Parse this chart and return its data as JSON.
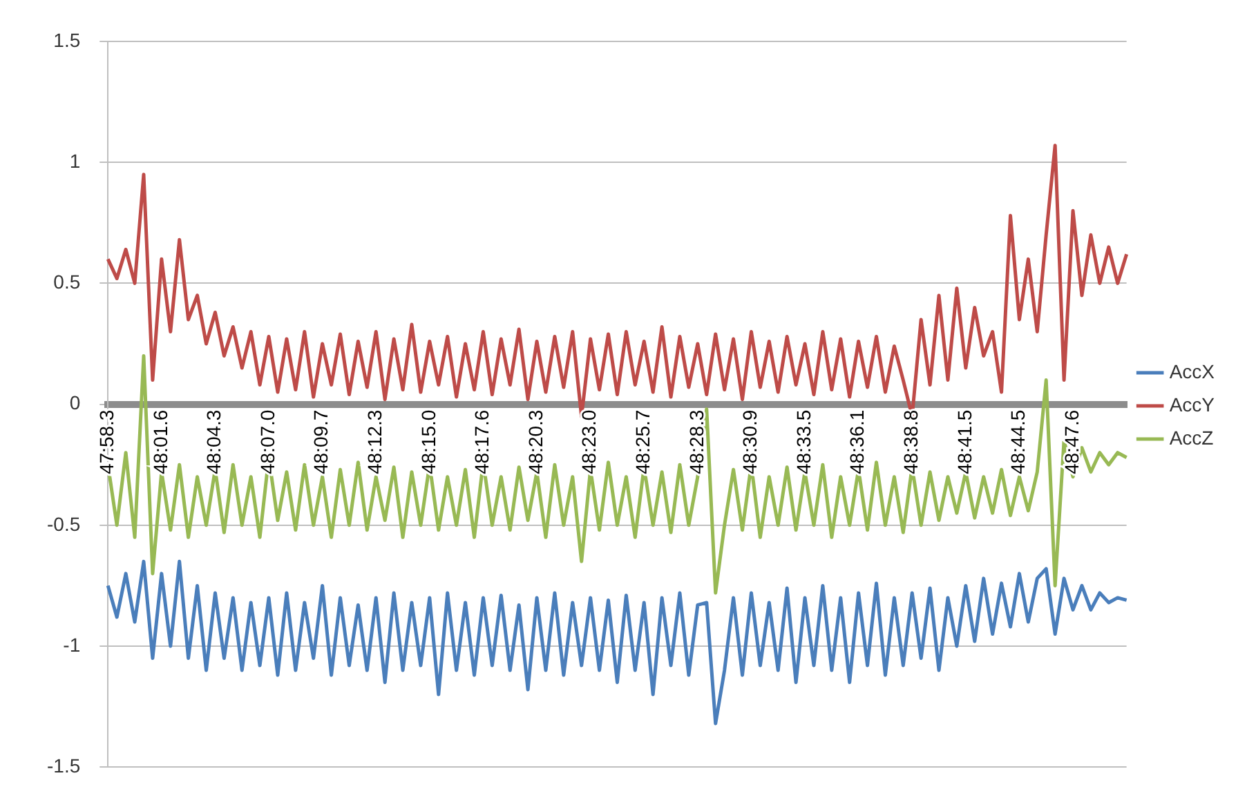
{
  "chart_data": {
    "type": "line",
    "categories": [
      "47:58.3",
      null,
      null,
      null,
      null,
      null,
      "48:01.6",
      null,
      null,
      null,
      null,
      null,
      "48:04.3",
      null,
      null,
      null,
      null,
      null,
      "48:07.0",
      null,
      null,
      null,
      null,
      null,
      "48:09.7",
      null,
      null,
      null,
      null,
      null,
      "48:12.3",
      null,
      null,
      null,
      null,
      null,
      "48:15.0",
      null,
      null,
      null,
      null,
      null,
      "48:17.6",
      null,
      null,
      null,
      null,
      null,
      "48:20.3",
      null,
      null,
      null,
      null,
      null,
      "48:23.0",
      null,
      null,
      null,
      null,
      null,
      "48:25.7",
      null,
      null,
      null,
      null,
      null,
      "48:28.3",
      null,
      null,
      null,
      null,
      null,
      "48:30.9",
      null,
      null,
      null,
      null,
      null,
      "48:33.5",
      null,
      null,
      null,
      null,
      null,
      "48:36.1",
      null,
      null,
      null,
      null,
      null,
      "48:38.8",
      null,
      null,
      null,
      null,
      null,
      "48:41.5",
      null,
      null,
      null,
      null,
      null,
      "48:44.5",
      null,
      null,
      null,
      null,
      null,
      "48:47.6",
      null,
      null,
      null,
      null,
      null,
      null
    ],
    "series": [
      {
        "name": "AccX",
        "color": "#4a7ebb",
        "values": [
          -0.75,
          -0.88,
          -0.7,
          -0.9,
          -0.65,
          -1.05,
          -0.7,
          -1.0,
          -0.65,
          -1.05,
          -0.75,
          -1.1,
          -0.78,
          -1.05,
          -0.8,
          -1.1,
          -0.82,
          -1.08,
          -0.8,
          -1.12,
          -0.78,
          -1.1,
          -0.82,
          -1.05,
          -0.75,
          -1.12,
          -0.8,
          -1.08,
          -0.83,
          -1.1,
          -0.8,
          -1.15,
          -0.78,
          -1.1,
          -0.82,
          -1.08,
          -0.8,
          -1.2,
          -0.78,
          -1.1,
          -0.82,
          -1.12,
          -0.8,
          -1.08,
          -0.79,
          -1.1,
          -0.83,
          -1.18,
          -0.8,
          -1.1,
          -0.78,
          -1.12,
          -0.82,
          -1.08,
          -0.8,
          -1.1,
          -0.81,
          -1.15,
          -0.79,
          -1.1,
          -0.82,
          -1.2,
          -0.8,
          -1.08,
          -0.78,
          -1.12,
          -0.83,
          -0.82,
          -1.32,
          -1.1,
          -0.8,
          -1.12,
          -0.78,
          -1.08,
          -0.82,
          -1.1,
          -0.76,
          -1.15,
          -0.8,
          -1.08,
          -0.75,
          -1.1,
          -0.8,
          -1.15,
          -0.78,
          -1.08,
          -0.74,
          -1.12,
          -0.8,
          -1.08,
          -0.78,
          -1.05,
          -0.76,
          -1.1,
          -0.8,
          -1.0,
          -0.75,
          -0.98,
          -0.72,
          -0.95,
          -0.74,
          -0.92,
          -0.7,
          -0.9,
          -0.72,
          -0.68,
          -0.95,
          -0.72,
          -0.85,
          -0.75,
          -0.85,
          -0.78,
          -0.82,
          -0.8,
          -0.81
        ]
      },
      {
        "name": "AccY",
        "color": "#be4b48",
        "values": [
          0.6,
          0.52,
          0.64,
          0.5,
          0.95,
          0.1,
          0.6,
          0.3,
          0.68,
          0.35,
          0.45,
          0.25,
          0.38,
          0.2,
          0.32,
          0.15,
          0.3,
          0.08,
          0.28,
          0.05,
          0.27,
          0.06,
          0.3,
          0.03,
          0.25,
          0.08,
          0.29,
          0.04,
          0.26,
          0.07,
          0.3,
          0.02,
          0.27,
          0.06,
          0.33,
          0.05,
          0.26,
          0.08,
          0.28,
          0.03,
          0.25,
          0.06,
          0.3,
          0.04,
          0.27,
          0.08,
          0.31,
          0.02,
          0.26,
          0.05,
          0.28,
          0.07,
          0.3,
          -0.05,
          0.27,
          0.06,
          0.29,
          0.04,
          0.3,
          0.08,
          0.26,
          0.05,
          0.32,
          0.03,
          0.28,
          0.07,
          0.25,
          0.04,
          0.29,
          0.06,
          0.27,
          0.02,
          0.3,
          0.07,
          0.26,
          0.05,
          0.28,
          0.08,
          0.25,
          0.04,
          0.3,
          0.06,
          0.27,
          0.03,
          0.26,
          0.07,
          0.28,
          0.05,
          0.24,
          0.1,
          -0.05,
          0.35,
          0.08,
          0.45,
          0.1,
          0.48,
          0.15,
          0.4,
          0.2,
          0.3,
          0.05,
          0.78,
          0.35,
          0.6,
          0.3,
          0.7,
          1.07,
          0.1,
          0.8,
          0.45,
          0.7,
          0.5,
          0.65,
          0.5,
          0.62
        ]
      },
      {
        "name": "AccZ",
        "color": "#98b954",
        "values": [
          -0.25,
          -0.5,
          -0.2,
          -0.55,
          0.2,
          -0.7,
          -0.28,
          -0.52,
          -0.25,
          -0.55,
          -0.3,
          -0.5,
          -0.27,
          -0.53,
          -0.25,
          -0.5,
          -0.3,
          -0.55,
          -0.22,
          -0.48,
          -0.28,
          -0.52,
          -0.25,
          -0.5,
          -0.3,
          -0.55,
          -0.27,
          -0.5,
          -0.24,
          -0.52,
          -0.3,
          -0.48,
          -0.26,
          -0.55,
          -0.28,
          -0.5,
          -0.25,
          -0.52,
          -0.3,
          -0.5,
          -0.27,
          -0.55,
          -0.24,
          -0.5,
          -0.3,
          -0.52,
          -0.26,
          -0.48,
          -0.28,
          -0.55,
          -0.25,
          -0.5,
          -0.3,
          -0.65,
          -0.27,
          -0.52,
          -0.24,
          -0.5,
          -0.3,
          -0.55,
          -0.26,
          -0.5,
          -0.28,
          -0.53,
          -0.25,
          -0.5,
          -0.3,
          -0.02,
          -0.78,
          -0.5,
          -0.27,
          -0.52,
          -0.25,
          -0.55,
          -0.3,
          -0.5,
          -0.26,
          -0.52,
          -0.28,
          -0.5,
          -0.25,
          -0.55,
          -0.3,
          -0.5,
          -0.27,
          -0.52,
          -0.24,
          -0.5,
          -0.3,
          -0.53,
          -0.26,
          -0.5,
          -0.28,
          -0.48,
          -0.3,
          -0.45,
          -0.28,
          -0.47,
          -0.3,
          -0.45,
          -0.27,
          -0.46,
          -0.3,
          -0.44,
          -0.28,
          0.1,
          -0.75,
          -0.15,
          -0.3,
          -0.18,
          -0.28,
          -0.2,
          -0.25,
          -0.2,
          -0.22
        ]
      }
    ],
    "ylim": [
      -1.5,
      1.5
    ],
    "yticks": [
      -1.5,
      -1,
      -0.5,
      0,
      0.5,
      1,
      1.5
    ],
    "grid": "y",
    "legend": "right",
    "marker": "none",
    "line_style": "solid"
  }
}
